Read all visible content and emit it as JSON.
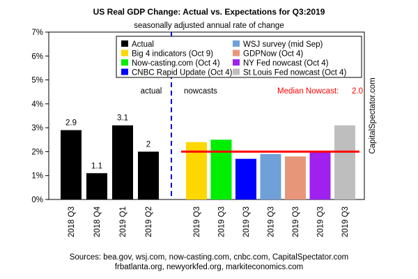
{
  "chart_data": {
    "type": "bar",
    "title": "US Real GDP Change: Actual vs. Expectations for Q3:2019",
    "subtitle": "seasonally adjusted annual rate of change",
    "ylim": [
      0,
      7
    ],
    "y_ticks": [
      "0%",
      "1%",
      "2%",
      "3%",
      "4%",
      "5%",
      "6%",
      "7%"
    ],
    "grid": false,
    "legend_position": "top",
    "section_labels": {
      "left": "actual",
      "right": "nowcasts"
    },
    "median": {
      "label": "Median Nowcast:",
      "value_label": "2.0",
      "value": 2.0,
      "color": "#ff0000"
    },
    "watermark": "CapitalSpectator.com",
    "sources": [
      "Sources: bea.gov, wsj.com, now-casting.com, cnbc.com, CapitalSpectator.com",
      "frbatlanta.org, newyorkfed.org, markiteconomics.com"
    ],
    "actual": {
      "categories": [
        "2018 Q3",
        "2018 Q4",
        "2019 Q1",
        "2019 Q2"
      ],
      "values": [
        2.9,
        1.1,
        3.1,
        2.0
      ],
      "labels": [
        "2.9",
        "1.1",
        "3.1",
        "2"
      ],
      "color": "#000000"
    },
    "nowcasts": {
      "categories": [
        "2019 Q3",
        "2019 Q3",
        "2019 Q3",
        "2019 Q3",
        "2019 Q3",
        "2019 Q3",
        "2019 Q3"
      ],
      "values": [
        2.4,
        2.5,
        1.7,
        1.9,
        1.8,
        2.0,
        3.1
      ],
      "colors": [
        "#ffd700",
        "#00ee00",
        "#0000ff",
        "#6fa1d8",
        "#e8967a",
        "#a020f0",
        "#bebebe"
      ]
    },
    "legend": [
      {
        "label": "Actual",
        "color": "#000000"
      },
      {
        "label": "WSJ survey (mid Sep)",
        "color": "#6fa1d8"
      },
      {
        "label": "Big 4 indicators (Oct 9)",
        "color": "#ffd700"
      },
      {
        "label": "GDPNow (Oct 4)",
        "color": "#e8967a"
      },
      {
        "label": "Now-casting.com (Oct 4)",
        "color": "#00ee00"
      },
      {
        "label": "NY Fed nowcast (Oct 4)",
        "color": "#a020f0"
      },
      {
        "label": "CNBC Rapid Update (Oct 4)",
        "color": "#0000ff"
      },
      {
        "label": "St Louis Fed nowcast (Oct 4)",
        "color": "#bebebe"
      }
    ]
  }
}
